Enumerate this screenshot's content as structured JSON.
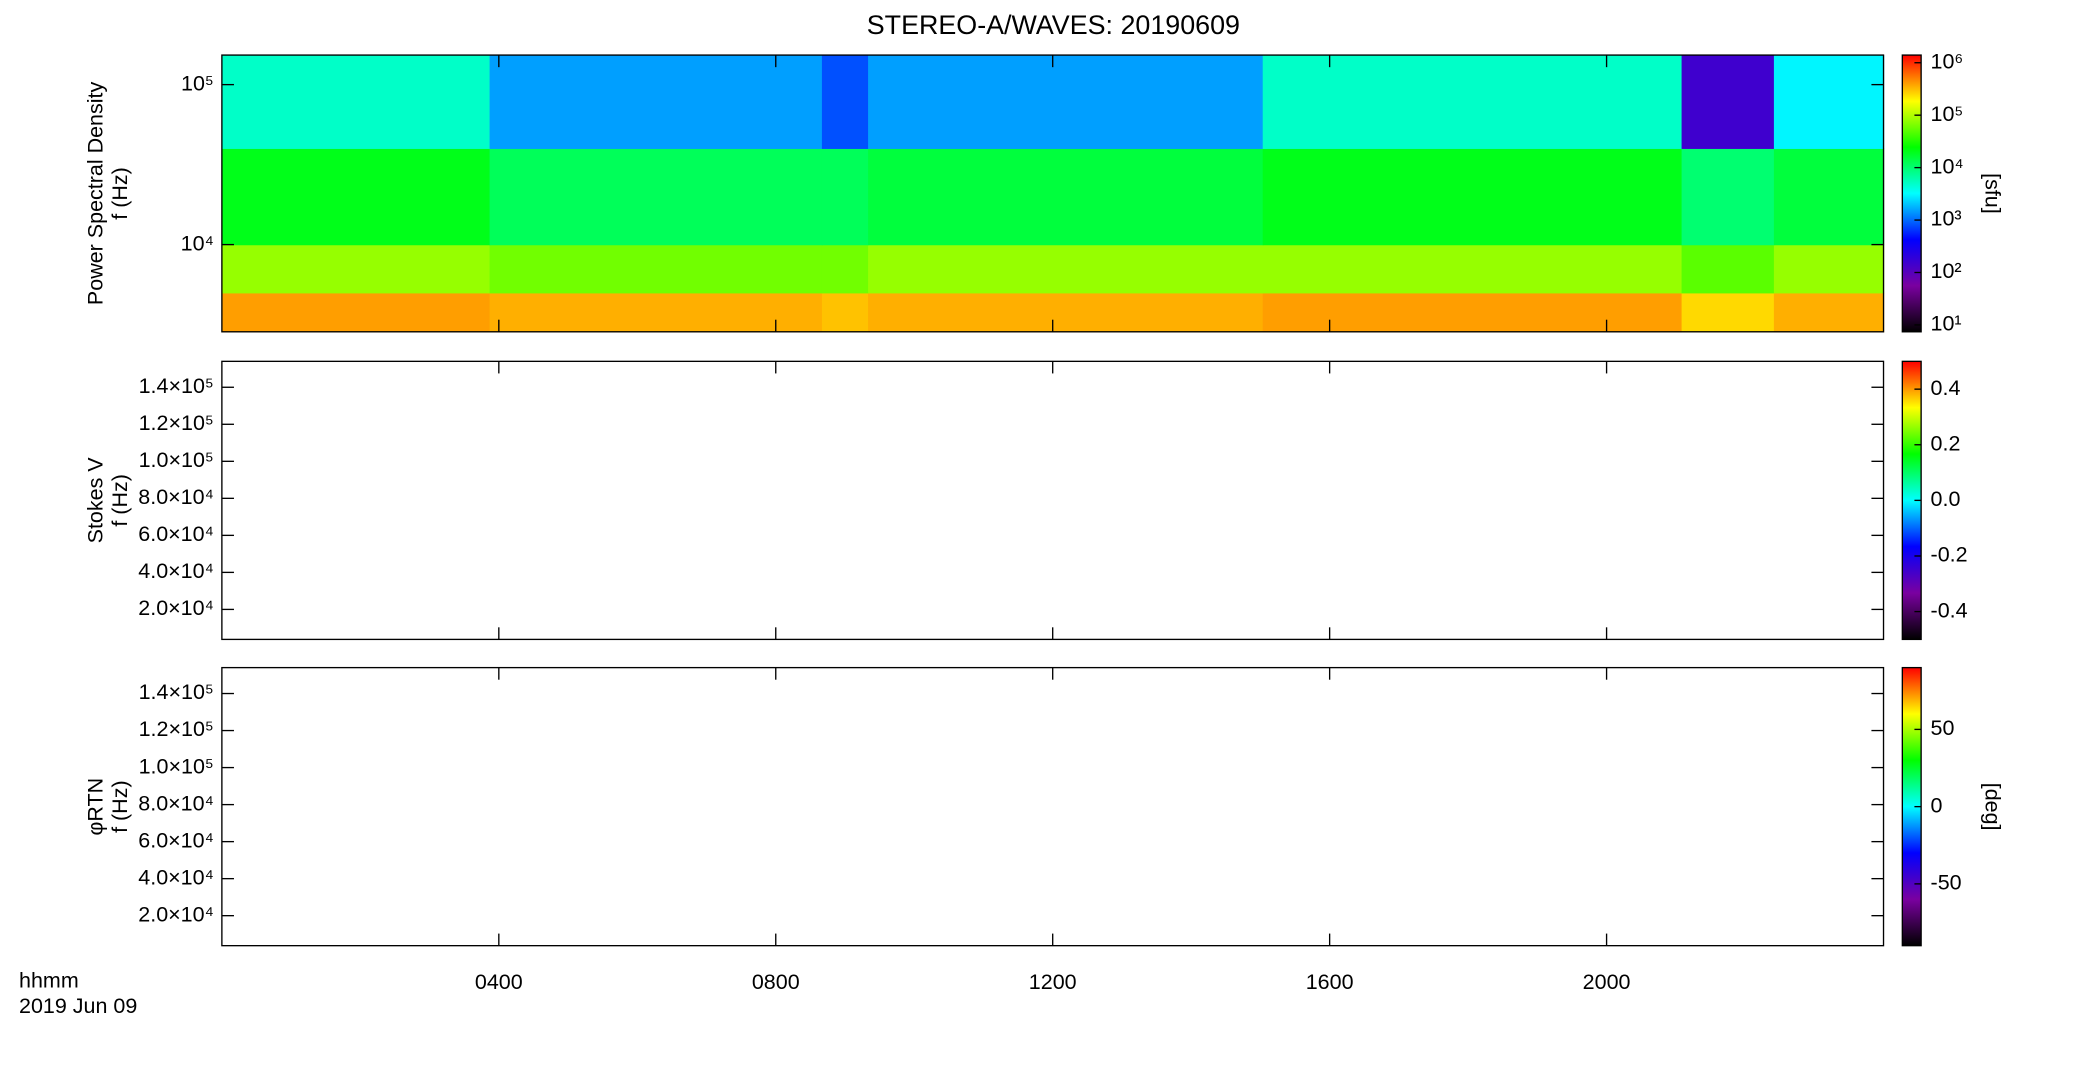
{
  "chart_data": [
    {
      "type": "heatmap",
      "title": "STEREO-A/WAVES: 20190609",
      "ylabel": [
        "Power Spectral Density",
        "f (Hz)"
      ],
      "zlabel": "[sfu]",
      "ylog": true,
      "zlog": true,
      "xlim": [
        0,
        1440
      ],
      "xticks": [
        240,
        480,
        720,
        960,
        1200
      ],
      "ylim": [
        2850,
        153000
      ],
      "yticks": [
        {
          "value": 10000,
          "label": "10⁴"
        },
        {
          "value": 100000,
          "label": "10⁵"
        }
      ],
      "zlim": [
        7.4,
        1400000
      ],
      "zticks": [
        {
          "value": 10,
          "label": "10¹"
        },
        {
          "value": 100,
          "label": "10²"
        },
        {
          "value": 1000,
          "label": "10³"
        },
        {
          "value": 10000,
          "label": "10⁴"
        },
        {
          "value": 100000,
          "label": "10⁵"
        },
        {
          "value": 1000000,
          "label": "10⁶"
        }
      ],
      "colormap": [
        "#000000",
        "#7a00a0",
        "#0000ff",
        "#00ffff",
        "#00ff00",
        "#ffff00",
        "#ff0000"
      ],
      "xedges": [
        0,
        232,
        520,
        560,
        902,
        1265,
        1345,
        1440
      ],
      "yedges": [
        2850,
        5000,
        10000,
        40000,
        153000
      ],
      "z": [
        [
          400000,
          350000,
          300000,
          350000,
          400000,
          250000,
          350000
        ],
        [
          80000,
          60000,
          60000,
          80000,
          80000,
          50000,
          80000
        ],
        [
          20000,
          12000,
          12000,
          15000,
          20000,
          10000,
          15000
        ],
        [
          5000,
          1500,
          800,
          1500,
          5000,
          150,
          3000
        ]
      ]
    },
    {
      "type": "heatmap",
      "ylabel": [
        "Stokes V",
        "f (Hz)"
      ],
      "xlim": [
        0,
        1440
      ],
      "xticks": [
        240,
        480,
        720,
        960,
        1200
      ],
      "ylim": [
        3800,
        154000
      ],
      "yticks": [
        {
          "value": 20000,
          "label": "2.0×10⁴"
        },
        {
          "value": 40000,
          "label": "4.0×10⁴"
        },
        {
          "value": 60000,
          "label": "6.0×10⁴"
        },
        {
          "value": 80000,
          "label": "8.0×10⁴"
        },
        {
          "value": 100000,
          "label": "1.0×10⁵"
        },
        {
          "value": 120000,
          "label": "1.2×10⁵"
        },
        {
          "value": 140000,
          "label": "1.4×10⁵"
        }
      ],
      "zlim": [
        -0.5,
        0.5
      ],
      "zticks": [
        -0.4,
        -0.2,
        {
          "value": 0,
          "label": "0.0"
        },
        0.2,
        0.4
      ],
      "colormap": [
        "#000000",
        "#7a00a0",
        "#0000ff",
        "#00ffff",
        "#00ff00",
        "#ffff00",
        "#ff0000"
      ]
    },
    {
      "type": "heatmap",
      "ylabel": [
        "φRTN",
        "f (Hz)"
      ],
      "zlabel": "[deg]",
      "xlabel": [
        "hhmm",
        "2019 Jun 09"
      ],
      "xlim": [
        0,
        1440
      ],
      "xticks": [
        {
          "value": 240,
          "label": "0400"
        },
        {
          "value": 480,
          "label": "0800"
        },
        {
          "value": 720,
          "label": "1200"
        },
        {
          "value": 960,
          "label": "1600"
        },
        {
          "value": 1200,
          "label": "2000"
        }
      ],
      "ylim": [
        3800,
        154000
      ],
      "yticks": [
        {
          "value": 20000,
          "label": "2.0×10⁴"
        },
        {
          "value": 40000,
          "label": "4.0×10⁴"
        },
        {
          "value": 60000,
          "label": "6.0×10⁴"
        },
        {
          "value": 80000,
          "label": "8.0×10⁴"
        },
        {
          "value": 100000,
          "label": "1.0×10⁵"
        },
        {
          "value": 120000,
          "label": "1.2×10⁵"
        },
        {
          "value": 140000,
          "label": "1.4×10⁵"
        }
      ],
      "zlim": [
        -90,
        90
      ],
      "zticks": [
        -50,
        0,
        50
      ],
      "colormap": [
        "#000000",
        "#7a00a0",
        "#0000ff",
        "#00ffff",
        "#00ff00",
        "#ffff00",
        "#ff0000"
      ]
    }
  ]
}
